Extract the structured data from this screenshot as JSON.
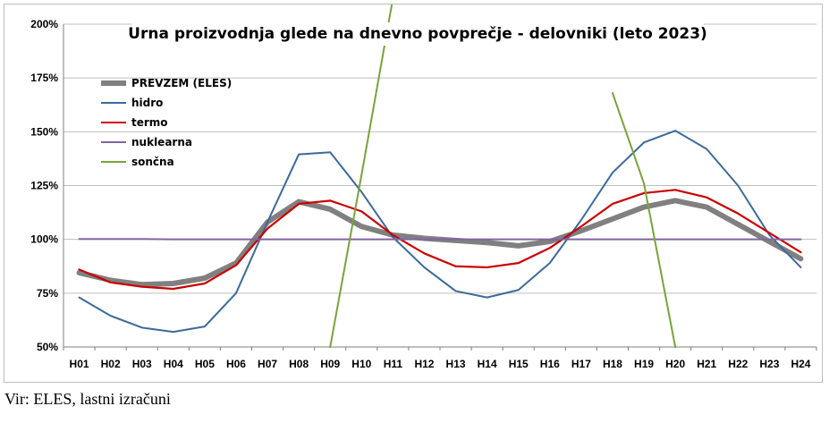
{
  "chart_data": {
    "type": "line",
    "title": "Urna proizvodnja glede na dnevno povprečje - delovniki (leto 2023)",
    "categories": [
      "H01",
      "H02",
      "H03",
      "H04",
      "H05",
      "H06",
      "H07",
      "H08",
      "H09",
      "H10",
      "H11",
      "H12",
      "H13",
      "H14",
      "H15",
      "H16",
      "H17",
      "H18",
      "H19",
      "H20",
      "H21",
      "H22",
      "H23",
      "H24"
    ],
    "y_ticks": [
      "50%",
      "75%",
      "100%",
      "125%",
      "150%",
      "175%",
      "200%"
    ],
    "ylim": [
      50,
      200
    ],
    "grid": true,
    "legend_position": "top-left",
    "series": [
      {
        "name": "PREVZEM (ELES)",
        "color": "#808080",
        "values": [
          84.5,
          81,
          79,
          79.5,
          82,
          89,
          108,
          117.5,
          114,
          106,
          102,
          100.5,
          99.5,
          98.5,
          97,
          99,
          104,
          109.5,
          115,
          118,
          115,
          107,
          99,
          91
        ]
      },
      {
        "name": "hidro",
        "color": "#3B6A9B",
        "values": [
          73,
          64.5,
          59,
          57,
          59.5,
          75,
          108,
          139.5,
          140.5,
          122,
          101,
          87,
          76,
          73,
          76.5,
          89,
          109,
          131,
          145,
          150.5,
          142,
          125,
          102,
          87
        ]
      },
      {
        "name": "termo",
        "color": "#CC0000",
        "values": [
          86,
          80,
          78,
          77,
          79.5,
          88,
          105,
          116.5,
          118,
          113,
          102,
          93.5,
          87.5,
          87,
          89,
          96,
          106,
          116.5,
          121.5,
          123,
          119.5,
          112,
          103,
          94
        ]
      },
      {
        "name": "nuklearna",
        "color": "#8064A2",
        "values": [
          100.2,
          100.2,
          100.2,
          100,
          100,
          100,
          100,
          100,
          100,
          100,
          100,
          100,
          100,
          100,
          100,
          100,
          100,
          100,
          100,
          100,
          100,
          100,
          100,
          100
        ]
      },
      {
        "name": "sončna",
        "color": "#77A43A",
        "values": [
          null,
          null,
          null,
          null,
          null,
          null,
          null,
          null,
          50,
          130,
          212,
          null,
          null,
          null,
          null,
          null,
          null,
          168,
          126,
          50,
          null,
          null,
          null,
          null
        ]
      }
    ]
  },
  "source_note": "Vir: ELES, lastni izračuni"
}
